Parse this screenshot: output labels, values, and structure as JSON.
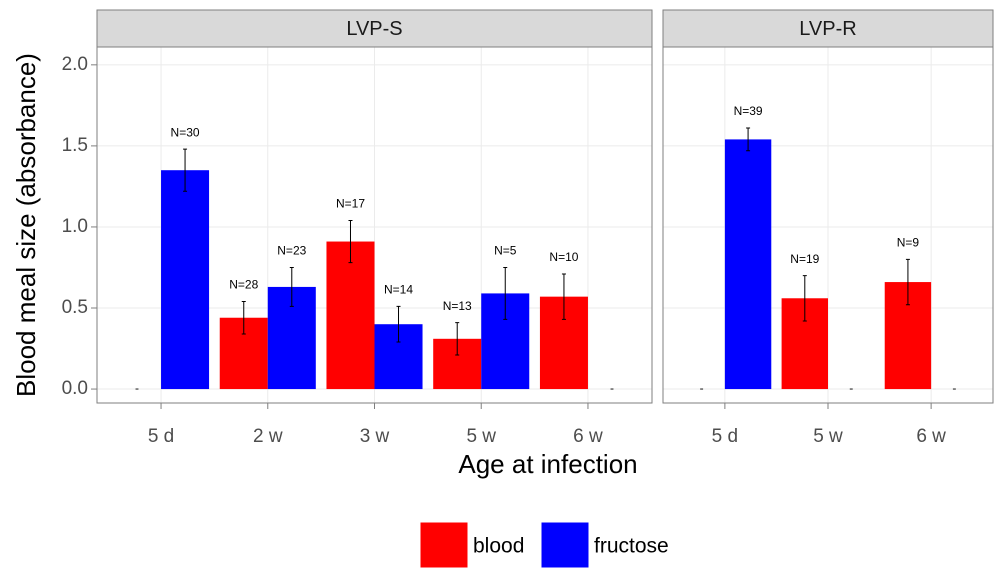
{
  "chart_data": [
    {
      "type": "bar",
      "title": "LVP-S",
      "ylabel": "Blood meal size (absorbance)",
      "xlabel": "Age at infection",
      "legend": "bottom",
      "categories": [
        "5 d",
        "2 w",
        "3 w",
        "5 w",
        "6 w"
      ],
      "ylim": [
        -0.086,
        2.11
      ],
      "yticks": [
        {
          "value": 0,
          "label": "0.0"
        },
        {
          "value": 0.5,
          "label": "0.5"
        },
        {
          "value": 1,
          "label": "1.0"
        },
        {
          "value": 1.5,
          "label": "1.5"
        },
        {
          "value": 2,
          "label": "2.0"
        }
      ],
      "grid": true,
      "series": [
        {
          "name": "blood",
          "color": "#ff0000",
          "values": [
            null,
            0.44,
            0.91,
            0.31,
            0.57
          ],
          "errors": [
            null,
            0.1,
            0.13,
            0.1,
            0.14
          ],
          "n_labels": [
            "-",
            "N=28",
            "N=17",
            "N=13",
            "N=10"
          ]
        },
        {
          "name": "fructose",
          "color": "#0000ff",
          "values": [
            1.35,
            0.63,
            0.4,
            0.59,
            null
          ],
          "errors": [
            0.13,
            0.12,
            0.11,
            0.16,
            null
          ],
          "n_labels": [
            "N=30",
            "N=23",
            "N=14",
            "N=5",
            "-"
          ]
        }
      ]
    },
    {
      "type": "bar",
      "title": "LVP-R",
      "categories": [
        "5 d",
        "5 w",
        "6 w"
      ],
      "ylim": [
        -0.086,
        2.11
      ],
      "yticks": [
        {
          "value": 0,
          "label": "0.0"
        },
        {
          "value": 0.5,
          "label": "0.5"
        },
        {
          "value": 1,
          "label": "1.0"
        },
        {
          "value": 1.5,
          "label": "1.5"
        },
        {
          "value": 2,
          "label": "2.0"
        }
      ],
      "grid": true,
      "series": [
        {
          "name": "blood",
          "color": "#ff0000",
          "values": [
            null,
            0.56,
            0.66
          ],
          "errors": [
            null,
            0.14,
            0.14
          ],
          "n_labels": [
            "-",
            "N=19",
            "N=9"
          ]
        },
        {
          "name": "fructose",
          "color": "#0000ff",
          "values": [
            1.54,
            null,
            null
          ],
          "errors": [
            0.07,
            null,
            null
          ],
          "n_labels": [
            "N=39",
            "-",
            "-"
          ]
        }
      ]
    }
  ]
}
